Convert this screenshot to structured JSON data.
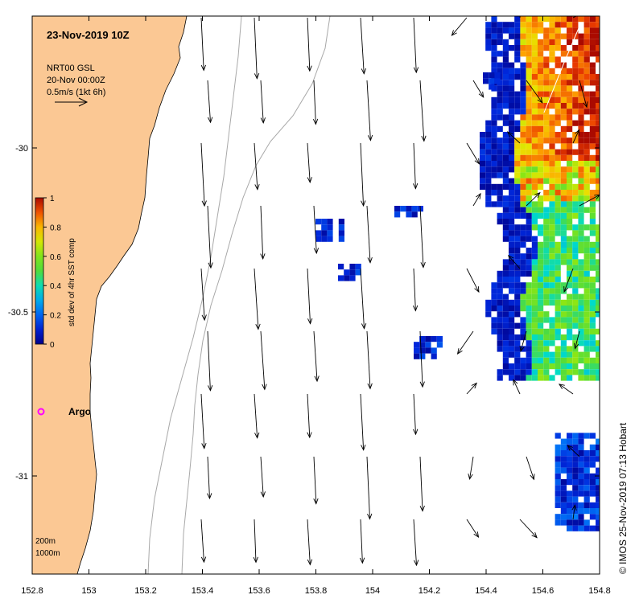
{
  "title": "23-Nov-2019 10Z",
  "product": "NRT00 GSL",
  "vector_time": "20-Nov 00:00Z",
  "vector_scale": "0.5m/s (1kt 6h)",
  "colorbar": {
    "label": "std dev of 4hr SST comp",
    "ticks": [
      "0",
      "0.2",
      "0.4",
      "0.6",
      "0.8",
      "1"
    ],
    "min": 0,
    "max": 1
  },
  "x_ticks": [
    "152.8",
    "153",
    "153.2",
    "153.4",
    "153.6",
    "153.8",
    "154",
    "154.2",
    "154.4",
    "154.6",
    "154.8"
  ],
  "y_ticks": [
    "-30",
    "-30.5",
    "-31"
  ],
  "marker": {
    "label": "Argo",
    "color": "#ff00ff"
  },
  "isobaths": [
    "200m",
    "1000m"
  ],
  "credit": "© IMOS 25-Nov-2019 07:13 Hobart",
  "colors": {
    "land": "#fbc894",
    "isobath": "#a0a0a0"
  }
}
